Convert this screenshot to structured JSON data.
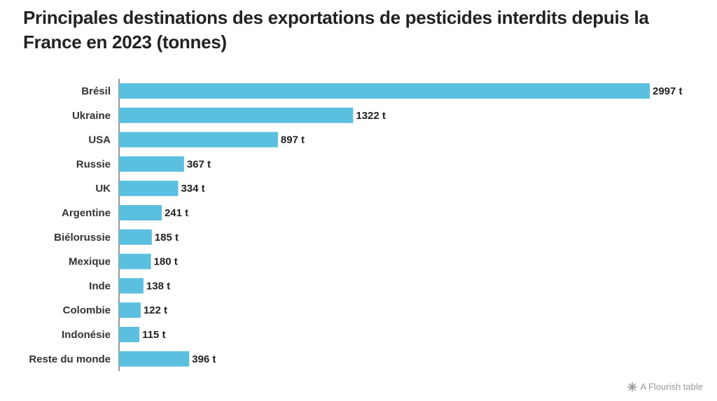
{
  "title": "Principales destinations des exportations de pesticides interdits depuis la France en 2023 (tonnes)",
  "credit": {
    "label": "A Flourish table",
    "icon": "flourish-star-icon"
  },
  "colors": {
    "bar": "#5bbfe0",
    "text": "#222222",
    "credit": "#9a9a9a"
  },
  "chart_data": {
    "type": "bar",
    "orientation": "horizontal",
    "title": "Principales destinations des exportations de pesticides interdits depuis la France en 2023 (tonnes)",
    "unit_suffix": " t",
    "categories": [
      "Brésil",
      "Ukraine",
      "USA",
      "Russie",
      "UK",
      "Argentine",
      "Biélorussie",
      "Mexique",
      "Inde",
      "Colombie",
      "Indonésie",
      "Reste du monde"
    ],
    "values": [
      2997,
      1322,
      897,
      367,
      334,
      241,
      185,
      180,
      138,
      122,
      115,
      396
    ],
    "value_labels": [
      "2997 t",
      "1322 t",
      "897 t",
      "367 t",
      "334 t",
      "241 t",
      "185 t",
      "180 t",
      "138 t",
      "122 t",
      "115 t",
      "396 t"
    ],
    "xlim": [
      0,
      2997
    ],
    "grid": false,
    "legend": "none"
  }
}
